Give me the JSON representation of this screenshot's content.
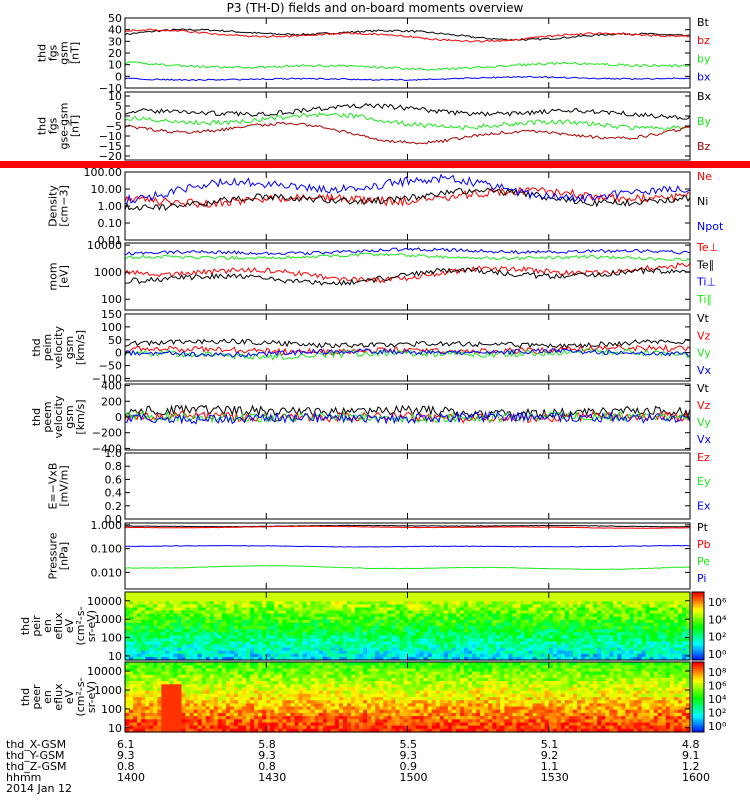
{
  "title": "P3 (TH-D) fields and on-board moments overview",
  "colors": {
    "black": "#000000",
    "red": "#ff0000",
    "green": "#1ee81e",
    "blue": "#0000ff",
    "darkred": "#aa0000"
  },
  "chart_data": [
    {
      "id": "p1",
      "type": "line",
      "ylabel": [
        "thd",
        "fgs",
        "gsm",
        "[nT]"
      ],
      "ylim": [
        -10,
        50
      ],
      "yticks": [
        "50",
        "40",
        "30",
        "20",
        "10",
        "0",
        "−10"
      ],
      "ytickvals": [
        50,
        40,
        30,
        20,
        10,
        0,
        -10
      ],
      "series": [
        {
          "name": "Bt",
          "color": "#000000",
          "base": 36,
          "amp": 5,
          "noise": 0.8
        },
        {
          "name": "bz",
          "color": "#ff0000",
          "base": 35,
          "amp": 5,
          "noise": 0.8
        },
        {
          "name": "by",
          "color": "#1ee81e",
          "base": 9,
          "amp": 3,
          "noise": 1
        },
        {
          "name": "bx",
          "color": "#0000ff",
          "base": -2,
          "amp": 1.5,
          "noise": 0.6
        }
      ]
    },
    {
      "id": "p2",
      "type": "line",
      "ylabel": [
        "thd",
        "fgs",
        "gse-gsm",
        "[nT]"
      ],
      "ylim": [
        -22,
        12
      ],
      "yticks": [
        "10",
        "5",
        "0",
        "−5",
        "−10",
        "−15",
        "−20"
      ],
      "ytickvals": [
        10,
        5,
        0,
        -5,
        -10,
        -15,
        -20
      ],
      "series": [
        {
          "name": "Bx",
          "color": "#000000",
          "base": 2,
          "amp": 3,
          "noise": 1.2
        },
        {
          "name": "By",
          "color": "#1ee81e",
          "base": -3,
          "amp": 4,
          "noise": 1.2
        },
        {
          "name": "Bz",
          "color": "#aa0000",
          "base": -8,
          "amp": 6,
          "noise": 0.8
        }
      ]
    },
    {
      "id": "p3",
      "type": "bar",
      "ylabel": [],
      "color": "#ff0000"
    },
    {
      "id": "p4",
      "type": "line",
      "log": true,
      "ylabel": [
        "Density",
        "[cm−3]"
      ],
      "ylim": [
        0.01,
        100
      ],
      "yticks": [
        "100.00",
        "10.00",
        "1.00",
        "0.10",
        "0.01"
      ],
      "ytickvals": [
        100,
        10,
        1,
        0.1,
        0.01
      ],
      "series": [
        {
          "name": "Ne",
          "color": "#ff0000",
          "base": 0.5,
          "amp": 0.4,
          "noise": 0.25
        },
        {
          "name": "Ni",
          "color": "#000000",
          "base": 0.4,
          "amp": 0.5,
          "noise": 0.2
        },
        {
          "name": "Npot",
          "color": "#0000ff",
          "base": 1.0,
          "amp": 0.7,
          "noise": 0.25
        }
      ]
    },
    {
      "id": "p5",
      "type": "line",
      "log": true,
      "ylabel": [
        "mom",
        "[eV]"
      ],
      "ylim": [
        40,
        12000
      ],
      "yticks": [
        "10000",
        "1000",
        "100"
      ],
      "ytickvals": [
        10000,
        1000,
        100
      ],
      "series": [
        {
          "name": "Te⊥",
          "color": "#ff0000",
          "base": 3.0,
          "amp": 0.3,
          "noise": 0.1
        },
        {
          "name": "Te∥",
          "color": "#000000",
          "base": 2.85,
          "amp": 0.3,
          "noise": 0.1
        },
        {
          "name": "Ti⊥",
          "color": "#0000ff",
          "base": 3.75,
          "amp": 0.1,
          "noise": 0.06
        },
        {
          "name": "Ti∥",
          "color": "#1ee81e",
          "base": 3.55,
          "amp": 0.1,
          "noise": 0.06
        }
      ]
    },
    {
      "id": "p6",
      "type": "line",
      "ylabel": [
        "thd",
        "peim",
        "velocity",
        "gsm",
        "[km/s]"
      ],
      "ylim": [
        -110,
        150
      ],
      "yticks": [
        "150",
        "100",
        "50",
        "0",
        "−50",
        "−100"
      ],
      "ytickvals": [
        150,
        100,
        50,
        0,
        -50,
        -100
      ],
      "series": [
        {
          "name": "Vt",
          "color": "#000000",
          "base": 35,
          "amp": 10,
          "noise": 10
        },
        {
          "name": "Vz",
          "color": "#ff0000",
          "base": 10,
          "amp": 8,
          "noise": 12
        },
        {
          "name": "Vy",
          "color": "#1ee81e",
          "base": -5,
          "amp": 10,
          "noise": 12
        },
        {
          "name": "Vx",
          "color": "#0000ff",
          "base": 0,
          "amp": 8,
          "noise": 10
        }
      ]
    },
    {
      "id": "p7",
      "type": "line",
      "ylabel": [
        "thd",
        "peem",
        "velocity",
        "gsm",
        "[km/s]"
      ],
      "ylim": [
        -420,
        420
      ],
      "yticks": [
        "400",
        "200",
        "0",
        "−200",
        "−400"
      ],
      "ytickvals": [
        400,
        200,
        0,
        -200,
        -400
      ],
      "series": [
        {
          "name": "Vt",
          "color": "#000000",
          "base": 70,
          "amp": 30,
          "noise": 60
        },
        {
          "name": "Vz",
          "color": "#ff0000",
          "base": 0,
          "amp": 20,
          "noise": 60
        },
        {
          "name": "Vy",
          "color": "#1ee81e",
          "base": 0,
          "amp": 20,
          "noise": 55
        },
        {
          "name": "Vx",
          "color": "#0000ff",
          "base": -10,
          "amp": 20,
          "noise": 60
        }
      ]
    },
    {
      "id": "p8",
      "type": "line",
      "ylabel": [
        "E=−VxB",
        "[mV/m]"
      ],
      "ylim": [
        0,
        1
      ],
      "yticks": [
        "1.0",
        "0.8",
        "0.6",
        "0.4",
        "0.2",
        "0.0"
      ],
      "ytickvals": [
        1,
        0.8,
        0.6,
        0.4,
        0.2,
        0
      ],
      "series": [
        {
          "name": "Ez",
          "color": "#ff0000"
        },
        {
          "name": "Ey",
          "color": "#1ee81e"
        },
        {
          "name": "Ex",
          "color": "#0000ff"
        }
      ]
    },
    {
      "id": "p9",
      "type": "line",
      "log": true,
      "ylabel": [
        "Pressure",
        "[nPa]"
      ],
      "ylim": [
        0.002,
        1.2
      ],
      "yticks": [
        "1.000",
        "0.100",
        "0.010"
      ],
      "ytickvals": [
        1,
        0.1,
        0.01
      ],
      "series": [
        {
          "name": "Pt",
          "color": "#000000",
          "base": -0.05,
          "amp": 0.03,
          "noise": 0.008
        },
        {
          "name": "Pb",
          "color": "#ff0000",
          "base": -0.1,
          "amp": 0.04,
          "noise": 0.008
        },
        {
          "name": "Pe",
          "color": "#1ee81e",
          "base": -1.8,
          "amp": 0.08,
          "noise": 0.01
        },
        {
          "name": "Pi",
          "color": "#0000ff",
          "base": -0.9,
          "amp": 0.03,
          "noise": 0.01
        }
      ]
    },
    {
      "id": "p10",
      "type": "heatmap",
      "ylabel": [
        "thd",
        "peir",
        "en",
        "eflux",
        "eV",
        "(cm²-s-",
        "sr-eV)"
      ],
      "log": true,
      "ylim": [
        6,
        30000
      ],
      "yticks": [
        "10000",
        "1000",
        "100",
        "10"
      ],
      "ytickvals": [
        10000,
        1000,
        100,
        10
      ],
      "colorbar": {
        "ticks": [
          "10⁶",
          "10⁴",
          "10²",
          "10⁰"
        ]
      }
    },
    {
      "id": "p11",
      "type": "heatmap",
      "ylabel": [
        "thd",
        "peer",
        "en",
        "eflux",
        "eV",
        "(cm²-s-",
        "sr-eV)"
      ],
      "log": true,
      "ylim": [
        6,
        30000
      ],
      "yticks": [
        "10000",
        "1000",
        "100",
        "10"
      ],
      "ytickvals": [
        10000,
        1000,
        100,
        10
      ],
      "colorbar": {
        "ticks": [
          "10⁸",
          "10⁶",
          "10⁴",
          "10²",
          "10⁰"
        ]
      }
    }
  ],
  "footer": {
    "rows": [
      {
        "label": "thd_X-GSM",
        "values": [
          "6.1",
          "5.8",
          "5.5",
          "5.1",
          "4.8"
        ]
      },
      {
        "label": "thd_Y-GSM",
        "values": [
          "9.3",
          "9.3",
          "9.3",
          "9.2",
          "9.1"
        ]
      },
      {
        "label": "thd_Z-GSM",
        "values": [
          "0.8",
          "0.8",
          "0.9",
          "1.1",
          "1.2"
        ]
      },
      {
        "label": "hhmm",
        "values": [
          "1400",
          "1430",
          "1500",
          "1530",
          "1600"
        ]
      }
    ],
    "date": "2014 Jan 12"
  }
}
